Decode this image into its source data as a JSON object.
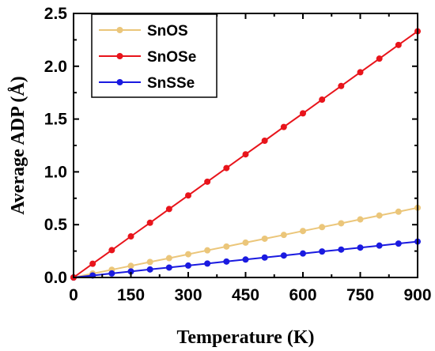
{
  "chart_data": {
    "type": "line",
    "title": "",
    "xlabel": "Temperature (K)",
    "ylabel": "Average ADP (Å)",
    "xlim": [
      0,
      900
    ],
    "ylim": [
      0,
      2.5
    ],
    "xticks": [
      0,
      150,
      300,
      450,
      600,
      750,
      900
    ],
    "yticks": [
      0.0,
      0.5,
      1.0,
      1.5,
      2.0,
      2.5
    ],
    "xtick_labels": [
      "0",
      "150",
      "300",
      "450",
      "600",
      "750",
      "900"
    ],
    "ytick_labels": [
      "0.0",
      "0.5",
      "1.0",
      "1.5",
      "2.0",
      "2.5"
    ],
    "x": [
      0,
      50,
      100,
      150,
      200,
      250,
      300,
      350,
      400,
      450,
      500,
      550,
      600,
      650,
      700,
      750,
      800,
      850,
      900
    ],
    "series": [
      {
        "name": "SnOS",
        "color": "#ebc67a",
        "values": [
          0.0,
          0.037,
          0.073,
          0.11,
          0.147,
          0.183,
          0.22,
          0.257,
          0.293,
          0.33,
          0.367,
          0.403,
          0.44,
          0.477,
          0.513,
          0.55,
          0.587,
          0.623,
          0.66
        ]
      },
      {
        "name": "SnOSe",
        "color": "#e8141b",
        "values": [
          0.0,
          0.13,
          0.259,
          0.389,
          0.518,
          0.648,
          0.777,
          0.907,
          1.036,
          1.166,
          1.295,
          1.425,
          1.554,
          1.684,
          1.813,
          1.943,
          2.072,
          2.202,
          2.331
        ]
      },
      {
        "name": "SnSSe",
        "color": "#1a1ae0",
        "values": [
          0.0,
          0.019,
          0.038,
          0.057,
          0.076,
          0.094,
          0.113,
          0.132,
          0.151,
          0.17,
          0.189,
          0.208,
          0.227,
          0.246,
          0.264,
          0.283,
          0.302,
          0.321,
          0.34
        ]
      }
    ],
    "legend_position": "top-left",
    "grid": false
  }
}
